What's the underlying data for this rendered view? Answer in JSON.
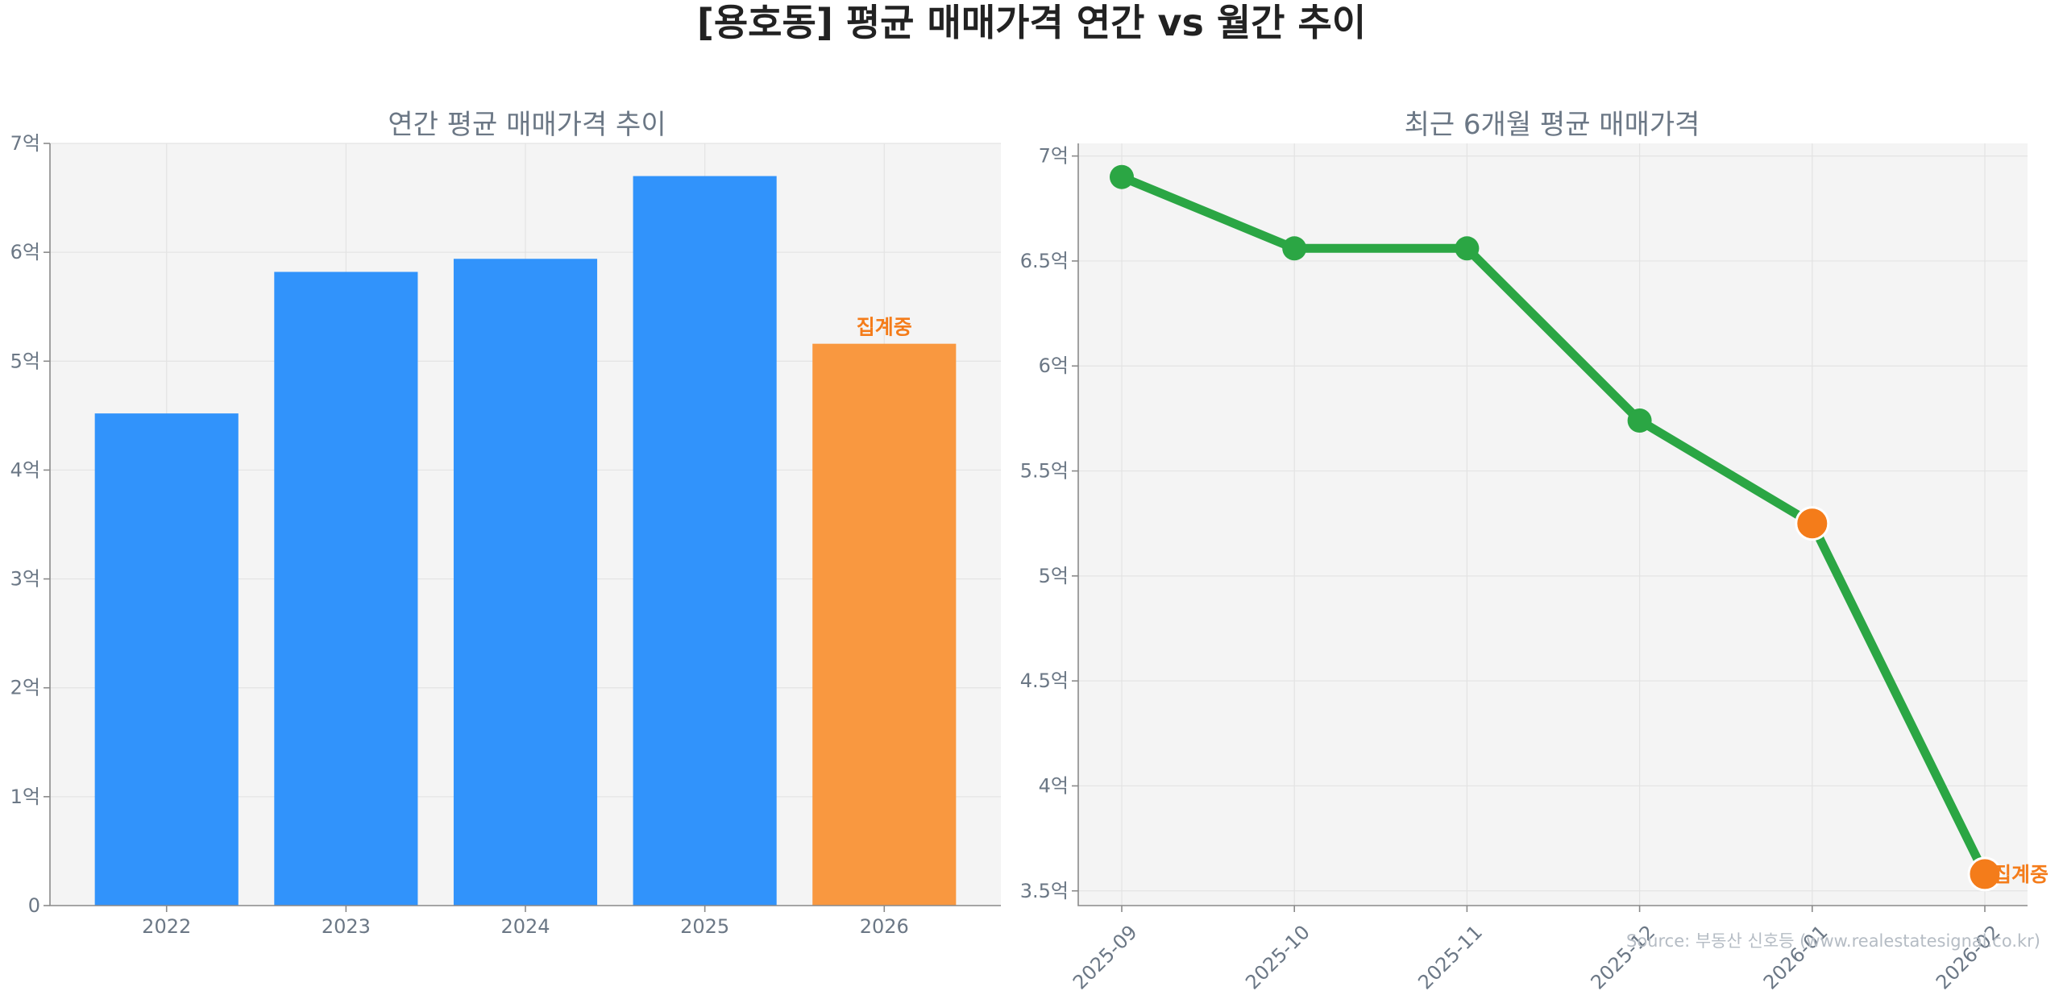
{
  "suptitle": "[용호동] 평균 매매가격 연간 vs 월간 추이",
  "source_note": "Source: 부동산 신호등 (www.realestatesignal.co.kr)",
  "colors": {
    "bar": "#3193fb",
    "bar_highlight": "#f99840",
    "line": "#2ba644",
    "highlight": "#f47c1a",
    "plot_bg": "#f4f4f4"
  },
  "chart_data": [
    {
      "type": "bar",
      "title": "연간 평균 매매가격 추이",
      "categories": [
        "2022",
        "2023",
        "2024",
        "2025",
        "2026"
      ],
      "values": [
        4.52,
        5.82,
        5.94,
        6.7,
        5.16
      ],
      "unit": "억",
      "ylim": [
        0,
        7
      ],
      "yticks": [
        0,
        1,
        2,
        3,
        4,
        5,
        6,
        7
      ],
      "ytick_labels": [
        "0",
        "1억",
        "2억",
        "3억",
        "4억",
        "5억",
        "6억",
        "7억"
      ],
      "highlight_index": 4,
      "annotation": {
        "index": 4,
        "text": "집계중"
      },
      "grid": true
    },
    {
      "type": "line",
      "title": "최근 6개월 평균 매매가격",
      "categories": [
        "2025-09",
        "2025-10",
        "2025-11",
        "2025-12",
        "2026-01",
        "2026-02"
      ],
      "values": [
        6.9,
        6.56,
        6.56,
        5.74,
        5.25,
        3.58
      ],
      "unit": "억",
      "ylim": [
        3.43,
        7.06
      ],
      "yticks": [
        3.5,
        4,
        4.5,
        5,
        5.5,
        6,
        6.5,
        7
      ],
      "ytick_labels": [
        "3.5억",
        "4억",
        "4.5억",
        "5억",
        "5.5억",
        "6억",
        "6.5억",
        "7억"
      ],
      "highlight_indices": [
        4,
        5
      ],
      "annotation": {
        "index": 5,
        "text": "집계중"
      },
      "grid": true
    }
  ]
}
